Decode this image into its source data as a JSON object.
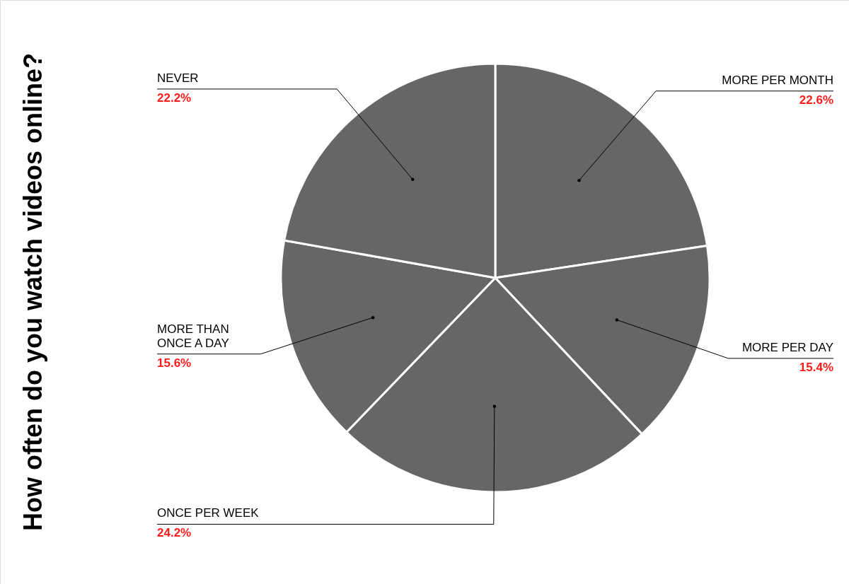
{
  "chart_data": {
    "type": "pie",
    "title": "How often do you watch videos online?",
    "categories": [
      "MORE PER MONTH",
      "MORE PER DAY",
      "ONCE PER WEEK",
      "MORE THAN\nONCE A DAY",
      "NEVER"
    ],
    "values": [
      22.6,
      15.4,
      24.2,
      15.6,
      22.2
    ],
    "colors": [
      "#666666",
      "#666666",
      "#666666",
      "#666666",
      "#666666"
    ],
    "value_labels": [
      "22.6%",
      "15.4%",
      "24.2%",
      "15.6%",
      "22.2%"
    ]
  }
}
